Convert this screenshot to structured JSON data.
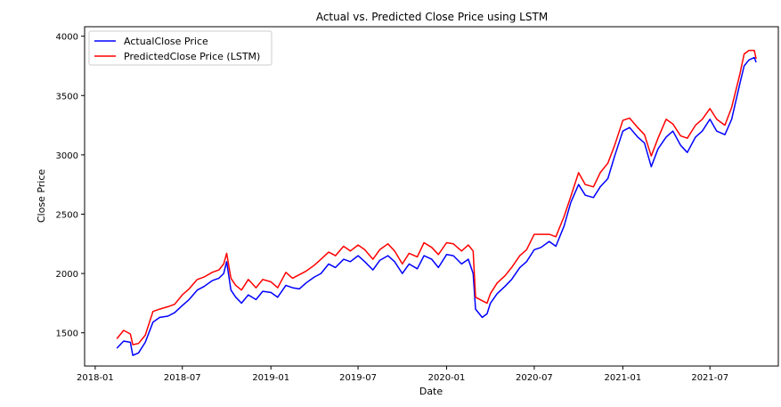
{
  "chart_data": {
    "type": "line",
    "title": "Actual vs. Predicted Close Price using LSTM",
    "xlabel": "Date",
    "ylabel": "Close Price",
    "xlim": [
      "2017-12-10",
      "2021-11-20"
    ],
    "ylim": [
      1220,
      4080
    ],
    "x_ticks": [
      "2018-01",
      "2018-07",
      "2019-01",
      "2019-07",
      "2020-01",
      "2020-07",
      "2021-01",
      "2021-07"
    ],
    "y_ticks": [
      1500,
      2000,
      2500,
      3000,
      3500,
      4000
    ],
    "grid": false,
    "legend": "upper-left",
    "x": [
      "2018-02-15",
      "2018-03-01",
      "2018-03-15",
      "2018-03-20",
      "2018-04-01",
      "2018-04-15",
      "2018-05-01",
      "2018-05-15",
      "2018-06-01",
      "2018-06-15",
      "2018-07-01",
      "2018-07-15",
      "2018-08-01",
      "2018-08-15",
      "2018-09-01",
      "2018-09-15",
      "2018-09-25",
      "2018-10-01",
      "2018-10-10",
      "2018-10-20",
      "2018-11-01",
      "2018-11-15",
      "2018-12-01",
      "2018-12-15",
      "2019-01-01",
      "2019-01-15",
      "2019-02-01",
      "2019-02-15",
      "2019-03-01",
      "2019-03-15",
      "2019-04-01",
      "2019-04-15",
      "2019-05-01",
      "2019-05-15",
      "2019-06-01",
      "2019-06-15",
      "2019-07-01",
      "2019-07-15",
      "2019-08-01",
      "2019-08-15",
      "2019-09-01",
      "2019-09-15",
      "2019-10-01",
      "2019-10-15",
      "2019-11-01",
      "2019-11-15",
      "2019-12-01",
      "2019-12-15",
      "2020-01-01",
      "2020-01-15",
      "2020-02-01",
      "2020-02-15",
      "2020-02-25",
      "2020-03-01",
      "2020-03-15",
      "2020-03-25",
      "2020-04-01",
      "2020-04-15",
      "2020-05-01",
      "2020-05-15",
      "2020-06-01",
      "2020-06-15",
      "2020-07-01",
      "2020-07-15",
      "2020-08-01",
      "2020-08-15",
      "2020-09-01",
      "2020-09-15",
      "2020-10-01",
      "2020-10-15",
      "2020-11-01",
      "2020-11-15",
      "2020-12-01",
      "2020-12-15",
      "2021-01-01",
      "2021-01-15",
      "2021-02-01",
      "2021-02-15",
      "2021-03-01",
      "2021-03-15",
      "2021-04-01",
      "2021-04-15",
      "2021-05-01",
      "2021-05-15",
      "2021-06-01",
      "2021-06-15",
      "2021-07-01",
      "2021-07-15",
      "2021-08-01",
      "2021-08-15",
      "2021-09-01",
      "2021-09-10",
      "2021-09-20",
      "2021-10-01",
      "2021-10-05"
    ],
    "series": [
      {
        "name": "ActualClose Price",
        "color": "#0000ff",
        "values": [
          1370,
          1430,
          1420,
          1310,
          1330,
          1420,
          1590,
          1630,
          1640,
          1670,
          1730,
          1780,
          1860,
          1890,
          1940,
          1960,
          2000,
          2100,
          1860,
          1800,
          1750,
          1820,
          1780,
          1850,
          1840,
          1800,
          1900,
          1880,
          1870,
          1920,
          1970,
          2000,
          2080,
          2050,
          2120,
          2100,
          2150,
          2100,
          2030,
          2110,
          2150,
          2100,
          2000,
          2080,
          2040,
          2150,
          2120,
          2050,
          2160,
          2150,
          2080,
          2120,
          2000,
          1700,
          1630,
          1660,
          1750,
          1830,
          1890,
          1950,
          2050,
          2100,
          2200,
          2220,
          2270,
          2230,
          2400,
          2600,
          2750,
          2660,
          2640,
          2730,
          2800,
          2990,
          3200,
          3230,
          3150,
          3100,
          2900,
          3050,
          3150,
          3200,
          3080,
          3020,
          3150,
          3200,
          3300,
          3200,
          3170,
          3300,
          3600,
          3750,
          3800,
          3820,
          3780
        ]
      },
      {
        "name": "PredictedClose Price (LSTM)",
        "color": "#ff0000",
        "values": [
          1450,
          1520,
          1490,
          1400,
          1410,
          1480,
          1680,
          1700,
          1720,
          1740,
          1820,
          1870,
          1950,
          1970,
          2010,
          2030,
          2080,
          2170,
          1960,
          1900,
          1860,
          1950,
          1880,
          1950,
          1930,
          1880,
          2010,
          1960,
          1990,
          2020,
          2070,
          2120,
          2180,
          2150,
          2230,
          2190,
          2240,
          2200,
          2120,
          2200,
          2250,
          2190,
          2080,
          2170,
          2140,
          2260,
          2220,
          2160,
          2260,
          2250,
          2190,
          2240,
          2190,
          1800,
          1770,
          1750,
          1830,
          1920,
          1980,
          2050,
          2150,
          2200,
          2330,
          2330,
          2330,
          2310,
          2480,
          2650,
          2850,
          2750,
          2730,
          2850,
          2930,
          3080,
          3290,
          3310,
          3230,
          3170,
          2990,
          3140,
          3300,
          3260,
          3160,
          3140,
          3250,
          3300,
          3390,
          3300,
          3250,
          3400,
          3680,
          3850,
          3880,
          3880,
          3810
        ]
      }
    ]
  }
}
